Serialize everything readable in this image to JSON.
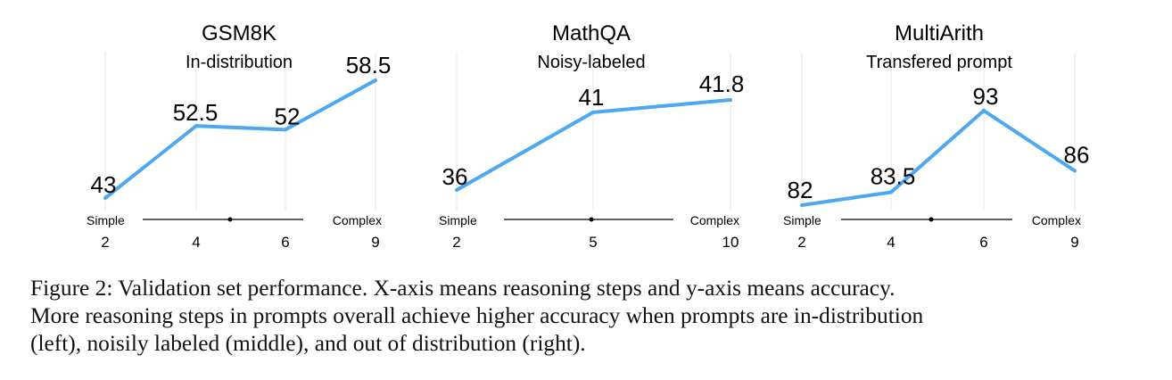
{
  "chart_data": [
    {
      "type": "line",
      "title": "GSM8K",
      "subtitle": "In-distribution",
      "x": [
        2,
        4,
        6,
        9
      ],
      "y": [
        43,
        52.5,
        52,
        58.5
      ],
      "x_tick_labels": [
        "2",
        "4",
        "6",
        "9"
      ],
      "data_labels": [
        "43",
        "52.5",
        "52",
        "58.5"
      ],
      "arrow_left_label": "Simple",
      "arrow_right_label": "Complex",
      "grid": true,
      "color": "#4ea8f0"
    },
    {
      "type": "line",
      "title": "MathQA",
      "subtitle": "Noisy-labeled",
      "x": [
        2,
        5,
        10
      ],
      "y": [
        36,
        41,
        41.8
      ],
      "x_tick_labels": [
        "2",
        "5",
        "10"
      ],
      "data_labels": [
        "36",
        "41",
        "41.8"
      ],
      "arrow_left_label": "Simple",
      "arrow_right_label": "Complex",
      "grid": true,
      "color": "#4ea8f0"
    },
    {
      "type": "line",
      "title": "MultiArith",
      "subtitle": "Transfered prompt",
      "x": [
        2,
        4,
        6,
        9
      ],
      "y": [
        82,
        83.5,
        93,
        86
      ],
      "x_tick_labels": [
        "2",
        "4",
        "6",
        "9"
      ],
      "data_labels": [
        "82",
        "83.5",
        "93",
        "86"
      ],
      "arrow_left_label": "Simple",
      "arrow_right_label": "Complex",
      "grid": true,
      "color": "#4ea8f0"
    }
  ],
  "caption": {
    "line1": "Figure 2:  Validation set performance.  X-axis means reasoning steps and y-axis means accuracy.",
    "line2": "More reasoning steps in prompts overall achieve higher accuracy when prompts are in-distribution",
    "line3": "(left), noisily labeled (middle), and out of distribution (right)."
  }
}
